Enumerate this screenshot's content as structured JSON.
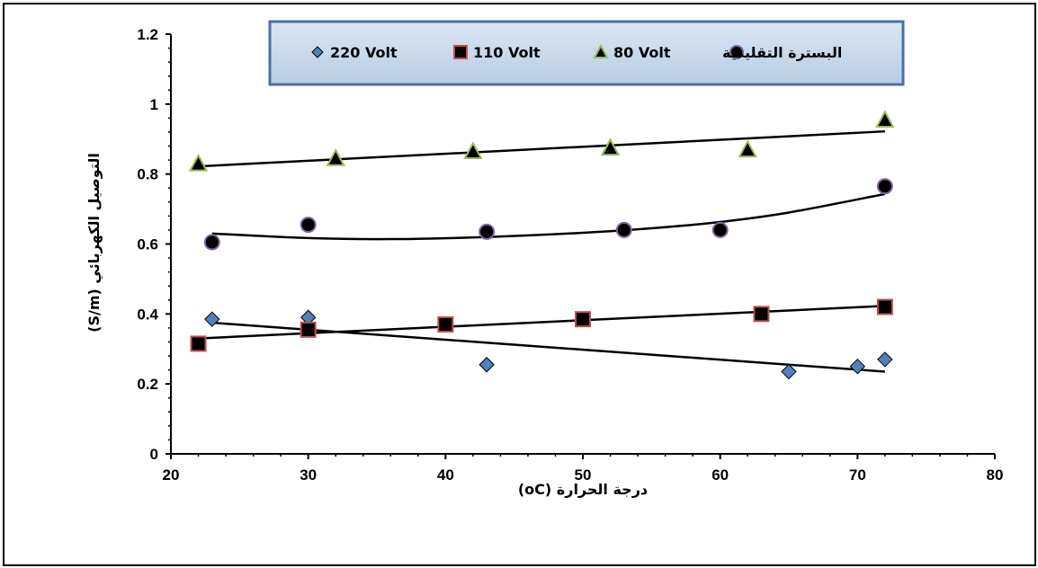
{
  "chart_data": {
    "type": "scatter",
    "xlabel": "درجة الحرارة (oC)",
    "ylabel": "التوصيل الكهربائي (S/m)",
    "xlim": [
      20,
      80
    ],
    "ylim": [
      0,
      1.2
    ],
    "xticks": [
      20,
      30,
      40,
      50,
      60,
      70,
      80
    ],
    "yticks": [
      0,
      0.2,
      0.4,
      0.6,
      0.8,
      1,
      1.2
    ],
    "xtick_labels": [
      "20",
      "30",
      "40",
      "50",
      "60",
      "70",
      "80"
    ],
    "ytick_labels": [
      "0",
      "0.2",
      "0.4",
      "0.6",
      "0.8",
      "1",
      "1.2"
    ],
    "grid": false,
    "legend_position": "top",
    "series": [
      {
        "name": "220 Volt",
        "marker": "diamond",
        "color": "#4f81bd",
        "points": [
          [
            23,
            0.385
          ],
          [
            30,
            0.39
          ],
          [
            43,
            0.255
          ],
          [
            65,
            0.235
          ],
          [
            70,
            0.25
          ],
          [
            72,
            0.27
          ]
        ],
        "trend": [
          [
            23,
            0.375
          ],
          [
            72,
            0.235
          ]
        ]
      },
      {
        "name": "110 Volt",
        "marker": "square",
        "color": "#c0504d",
        "points": [
          [
            22,
            0.315
          ],
          [
            30,
            0.355
          ],
          [
            40,
            0.37
          ],
          [
            50,
            0.385
          ],
          [
            63,
            0.4
          ],
          [
            72,
            0.42
          ]
        ],
        "trend": [
          [
            22,
            0.33
          ],
          [
            72,
            0.423
          ]
        ]
      },
      {
        "name": "80 Volt",
        "marker": "triangle",
        "color": "#9bbb59",
        "points": [
          [
            22,
            0.83
          ],
          [
            32,
            0.845
          ],
          [
            42,
            0.865
          ],
          [
            52,
            0.875
          ],
          [
            62,
            0.87
          ],
          [
            72,
            0.955
          ]
        ],
        "trend": [
          [
            22,
            0.822
          ],
          [
            72,
            0.922
          ]
        ]
      },
      {
        "name": "البسترة التقليدية",
        "marker": "circle",
        "color": "#8064a2",
        "points": [
          [
            23,
            0.605
          ],
          [
            30,
            0.655
          ],
          [
            43,
            0.635
          ],
          [
            53,
            0.64
          ],
          [
            60,
            0.64
          ],
          [
            72,
            0.765
          ]
        ],
        "trend": [
          [
            23,
            0.63
          ],
          [
            30,
            0.617
          ],
          [
            36,
            0.614
          ],
          [
            43,
            0.62
          ],
          [
            50,
            0.632
          ],
          [
            55,
            0.645
          ],
          [
            60,
            0.663
          ],
          [
            65,
            0.69
          ],
          [
            72,
            0.743
          ]
        ]
      }
    ]
  }
}
